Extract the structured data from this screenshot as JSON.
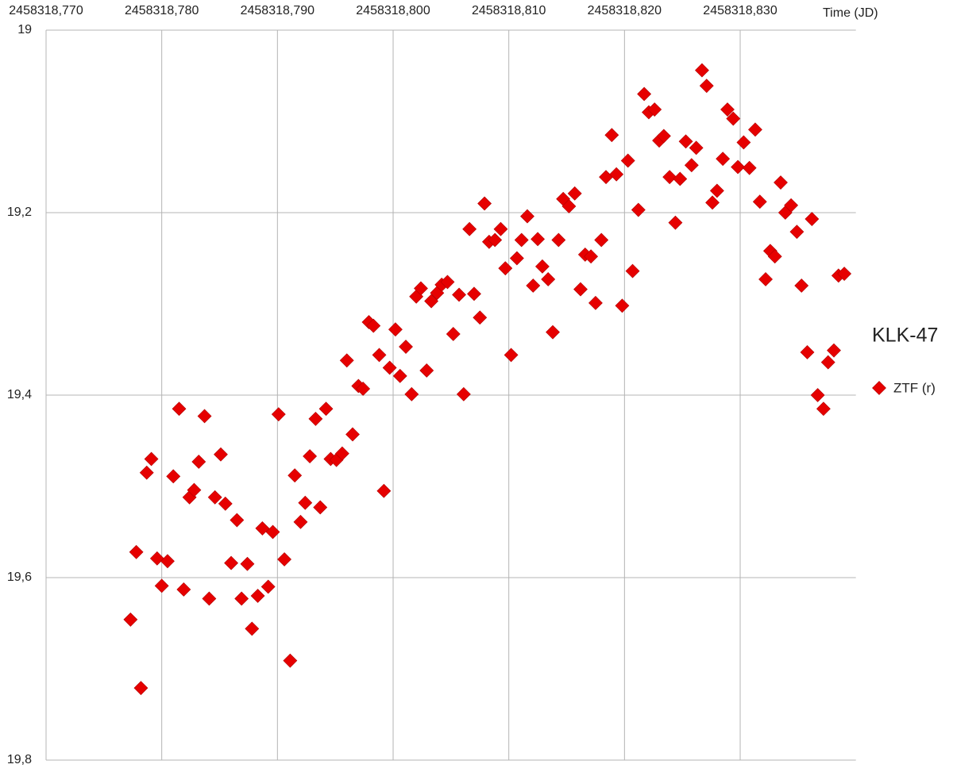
{
  "chart_data": {
    "type": "scatter",
    "title": "KLK-47",
    "x_label": "Time (JD)",
    "xlim": [
      2458318.77,
      2458318.84
    ],
    "xticks": [
      {
        "value": 2458318.77,
        "label": "2458318,770"
      },
      {
        "value": 2458318.78,
        "label": "2458318,780"
      },
      {
        "value": 2458318.79,
        "label": "2458318,790"
      },
      {
        "value": 2458318.8,
        "label": "2458318,800"
      },
      {
        "value": 2458318.81,
        "label": "2458318,810"
      },
      {
        "value": 2458318.82,
        "label": "2458318,820"
      },
      {
        "value": 2458318.83,
        "label": "2458318,830"
      }
    ],
    "ylim": [
      19,
      19.8
    ],
    "y_inverted": true,
    "yticks": [
      19,
      {
        "value": 19.2,
        "label": "19,2"
      },
      {
        "value": 19.4,
        "label": "19,4"
      },
      {
        "value": 19.6,
        "label": "19,6"
      },
      {
        "value": 19.8,
        "label": "19,8"
      }
    ],
    "grid": true,
    "legend": "right",
    "series": [
      {
        "name": "ZTF (r)",
        "color": "#e60000",
        "x": [
          2458318.7773,
          2458318.7778,
          2458318.7782,
          2458318.7787,
          2458318.7791,
          2458318.7796,
          2458318.78,
          2458318.7805,
          2458318.781,
          2458318.7815,
          2458318.7819,
          2458318.7824,
          2458318.7828,
          2458318.7832,
          2458318.7837,
          2458318.7841,
          2458318.7846,
          2458318.7851,
          2458318.7855,
          2458318.786,
          2458318.7865,
          2458318.7869,
          2458318.7874,
          2458318.7878,
          2458318.7883,
          2458318.7887,
          2458318.7892,
          2458318.7896,
          2458318.7901,
          2458318.7906,
          2458318.7911,
          2458318.7915,
          2458318.792,
          2458318.7924,
          2458318.7928,
          2458318.7933,
          2458318.7937,
          2458318.7942,
          2458318.7946,
          2458318.7951,
          2458318.7956,
          2458318.796,
          2458318.7965,
          2458318.797,
          2458318.7974,
          2458318.7979,
          2458318.7983,
          2458318.7988,
          2458318.7992,
          2458318.7997,
          2458318.8002,
          2458318.8006,
          2458318.8011,
          2458318.8016,
          2458318.802,
          2458318.8024,
          2458318.8029,
          2458318.8033,
          2458318.8038,
          2458318.8042,
          2458318.8047,
          2458318.8052,
          2458318.8057,
          2458318.8061,
          2458318.8066,
          2458318.807,
          2458318.8075,
          2458318.8079,
          2458318.8083,
          2458318.8088,
          2458318.8093,
          2458318.8097,
          2458318.8102,
          2458318.8107,
          2458318.8111,
          2458318.8116,
          2458318.8121,
          2458318.8125,
          2458318.8129,
          2458318.8134,
          2458318.8138,
          2458318.8143,
          2458318.8147,
          2458318.8152,
          2458318.8157,
          2458318.8162,
          2458318.8166,
          2458318.8171,
          2458318.8175,
          2458318.818,
          2458318.8184,
          2458318.8189,
          2458318.8193,
          2458318.8198,
          2458318.8203,
          2458318.8207,
          2458318.8212,
          2458318.8217,
          2458318.8221,
          2458318.8226,
          2458318.823,
          2458318.8234,
          2458318.8239,
          2458318.8244,
          2458318.8248,
          2458318.8253,
          2458318.8258,
          2458318.8262,
          2458318.8267,
          2458318.8271,
          2458318.8276,
          2458318.828,
          2458318.8285,
          2458318.8289,
          2458318.8294,
          2458318.8298,
          2458318.8303,
          2458318.8308,
          2458318.8313,
          2458318.8317,
          2458318.8322,
          2458318.8326,
          2458318.833,
          2458318.8335,
          2458318.8339,
          2458318.8344,
          2458318.8349,
          2458318.8353,
          2458318.8358,
          2458318.8362,
          2458318.8367,
          2458318.8372,
          2458318.8376,
          2458318.8381,
          2458318.8385,
          2458318.839
        ],
        "values": [
          19.646,
          19.572,
          19.721,
          19.485,
          19.47,
          19.579,
          19.609,
          19.582,
          19.489,
          19.415,
          19.613,
          19.512,
          19.504,
          19.473,
          19.423,
          19.623,
          19.512,
          19.465,
          19.519,
          19.584,
          19.537,
          19.623,
          19.585,
          19.656,
          19.62,
          19.546,
          19.61,
          19.55,
          19.421,
          19.58,
          19.691,
          19.488,
          19.539,
          19.518,
          19.467,
          19.426,
          19.523,
          19.415,
          19.47,
          19.471,
          19.464,
          19.362,
          19.443,
          19.39,
          19.393,
          19.32,
          19.324,
          19.356,
          19.505,
          19.37,
          19.328,
          19.379,
          19.347,
          19.399,
          19.292,
          19.283,
          19.373,
          19.297,
          19.288,
          19.279,
          19.276,
          19.333,
          19.29,
          19.399,
          19.218,
          19.289,
          19.315,
          19.19,
          19.232,
          19.23,
          19.218,
          19.261,
          19.356,
          19.25,
          19.23,
          19.204,
          19.28,
          19.229,
          19.259,
          19.273,
          19.331,
          19.23,
          19.185,
          19.193,
          19.179,
          19.284,
          19.246,
          19.248,
          19.299,
          19.23,
          19.161,
          19.115,
          19.158,
          19.302,
          19.143,
          19.264,
          19.197,
          19.07,
          19.09,
          19.087,
          19.121,
          19.116,
          19.161,
          19.211,
          19.163,
          19.122,
          19.148,
          19.129,
          19.044,
          19.061,
          19.189,
          19.176,
          19.141,
          19.087,
          19.097,
          19.15,
          19.123,
          19.151,
          19.109,
          19.188,
          19.273,
          19.242,
          19.248,
          19.167,
          19.2,
          19.192,
          19.221,
          19.28,
          19.353,
          19.207,
          19.4,
          19.415,
          19.364,
          19.351,
          19.269,
          19.267
        ]
      }
    ]
  }
}
